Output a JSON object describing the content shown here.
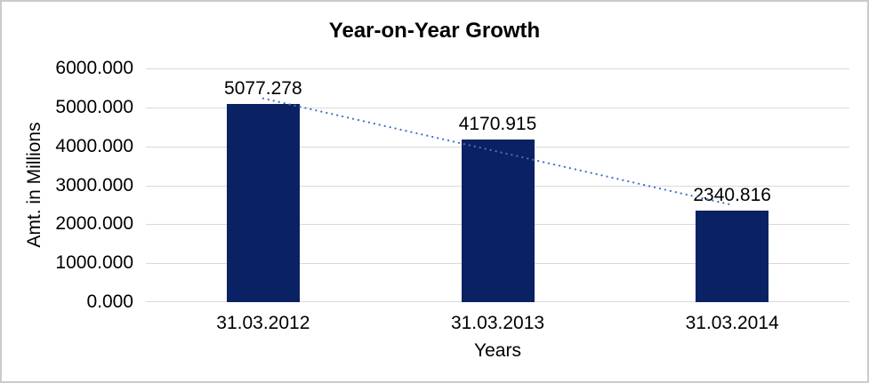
{
  "chart_data": {
    "type": "bar",
    "title": "Year-on-Year Growth",
    "xlabel": "Years",
    "ylabel": "Amt. in Millions",
    "categories": [
      "31.03.2012",
      "31.03.2013",
      "31.03.2014"
    ],
    "values": [
      5077.278,
      4170.915,
      2340.816
    ],
    "value_labels": [
      "5077.278",
      "4170.915",
      "2340.816"
    ],
    "ylim": [
      0,
      6000
    ],
    "y_ticks": [
      0,
      1000,
      2000,
      3000,
      4000,
      5000,
      6000
    ],
    "y_tick_labels": [
      "0.000",
      "1000.000",
      "2000.000",
      "3000.000",
      "4000.000",
      "5000.000",
      "6000.000"
    ],
    "grid": true,
    "legend": false,
    "trendline": {
      "type": "linear",
      "style": "dotted"
    },
    "colors": {
      "bar": "#0a2263",
      "trendline": "#4472c4",
      "gridline": "#d9d9d9",
      "axis_line": "#d9d9d9",
      "text": "#000000",
      "frame_border": "#cbcbcb",
      "background": "#ffffff"
    }
  }
}
